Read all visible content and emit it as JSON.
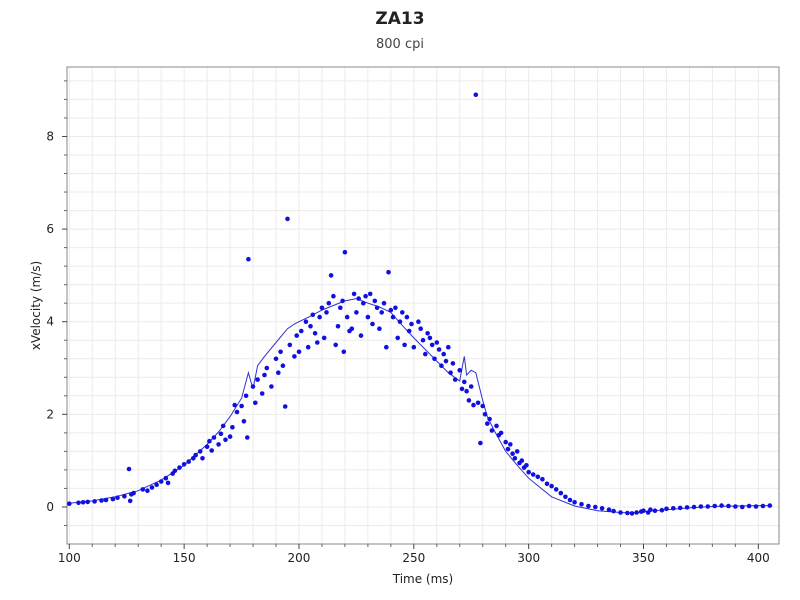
{
  "chart_data": {
    "type": "scatter",
    "title": "ZA13",
    "subtitle": "800 cpi",
    "xlabel": "Time (ms)",
    "ylabel": "xVelocity (m/s)",
    "xlim": [
      99,
      409
    ],
    "ylim": [
      -0.8,
      9.5
    ],
    "xticks": [
      100,
      150,
      200,
      250,
      300,
      350,
      400
    ],
    "yticks": [
      0,
      2,
      4,
      6,
      8
    ],
    "grid": true,
    "legend": "none",
    "colors": {
      "points": "#1010e0",
      "line": "#3030d0",
      "grid": "#ebebeb",
      "axis": "#222222"
    },
    "series": [
      {
        "kind": "points",
        "x": [
          100,
          104,
          106,
          108,
          111,
          114,
          116,
          119,
          121,
          124,
          126,
          126.5,
          127,
          128,
          132,
          134,
          136,
          138,
          140,
          142,
          143,
          145,
          146,
          148,
          150,
          152,
          154,
          155,
          157,
          158,
          160,
          161,
          162,
          163,
          165,
          166,
          167,
          168,
          170,
          171,
          172,
          173,
          175,
          176,
          177,
          177.5,
          178,
          180,
          181,
          182,
          184,
          185,
          186,
          188,
          190,
          191,
          192,
          193,
          194,
          195,
          196,
          198,
          199,
          200,
          201,
          203,
          204,
          205,
          206,
          207,
          208,
          209,
          210,
          211,
          212,
          213,
          214,
          215,
          216,
          217,
          218,
          219,
          219.5,
          220,
          221,
          222,
          223,
          224,
          225,
          226,
          227,
          228,
          229,
          230,
          231,
          232,
          233,
          234,
          235,
          236,
          237,
          238,
          239,
          240,
          241,
          242,
          243,
          244,
          245,
          246,
          247,
          248,
          249,
          250,
          252,
          253,
          254,
          255,
          256,
          257,
          258,
          259,
          260,
          261,
          262,
          263,
          264,
          265,
          266,
          267,
          268,
          270,
          271,
          272,
          273,
          274,
          275,
          276,
          277,
          278,
          279,
          280,
          281,
          282,
          283,
          284,
          286,
          287,
          288,
          290,
          291,
          292,
          293,
          294,
          295,
          296,
          297,
          298,
          299,
          300,
          302,
          304,
          306,
          308,
          310,
          312,
          314,
          316,
          318,
          320,
          323,
          326,
          329,
          332,
          335,
          337,
          340,
          343,
          345,
          347,
          349,
          350,
          352,
          353,
          355,
          358,
          360,
          363,
          366,
          369,
          372,
          375,
          378,
          381,
          384,
          387,
          390,
          393,
          396,
          399,
          402,
          405
        ],
        "y": [
          0.07,
          0.09,
          0.1,
          0.11,
          0.12,
          0.14,
          0.15,
          0.17,
          0.2,
          0.23,
          0.82,
          0.13,
          0.27,
          0.3,
          0.38,
          0.35,
          0.42,
          0.48,
          0.55,
          0.62,
          0.52,
          0.72,
          0.78,
          0.85,
          0.92,
          0.98,
          1.05,
          1.12,
          1.2,
          1.05,
          1.3,
          1.42,
          1.22,
          1.5,
          1.35,
          1.58,
          1.75,
          1.45,
          1.52,
          1.72,
          2.2,
          2.05,
          2.18,
          1.85,
          2.4,
          1.5,
          5.35,
          2.6,
          2.25,
          2.75,
          2.45,
          2.85,
          3.0,
          2.6,
          3.2,
          2.9,
          3.35,
          3.05,
          2.17,
          6.22,
          3.5,
          3.25,
          3.7,
          3.35,
          3.8,
          4.0,
          3.45,
          3.9,
          4.15,
          3.75,
          3.55,
          4.1,
          4.3,
          3.65,
          4.2,
          4.4,
          5.0,
          4.55,
          3.5,
          3.9,
          4.3,
          4.45,
          3.35,
          5.5,
          4.1,
          3.8,
          3.85,
          4.6,
          4.2,
          4.5,
          3.7,
          4.4,
          4.55,
          4.1,
          4.6,
          3.95,
          4.45,
          4.3,
          3.85,
          4.2,
          4.4,
          3.45,
          5.07,
          4.25,
          4.1,
          4.3,
          3.65,
          4.0,
          4.2,
          3.5,
          4.1,
          3.8,
          3.95,
          3.45,
          4.0,
          3.85,
          3.6,
          3.3,
          3.75,
          3.65,
          3.5,
          3.2,
          3.55,
          3.4,
          3.05,
          3.3,
          3.15,
          3.45,
          2.9,
          3.1,
          2.75,
          2.95,
          2.55,
          2.7,
          2.5,
          2.3,
          2.6,
          2.2,
          8.9,
          2.25,
          1.38,
          2.18,
          2.0,
          1.8,
          1.9,
          1.65,
          1.75,
          1.55,
          1.6,
          1.4,
          1.25,
          1.35,
          1.15,
          1.05,
          1.2,
          0.95,
          1.0,
          0.85,
          0.9,
          0.75,
          0.7,
          0.65,
          0.6,
          0.5,
          0.45,
          0.38,
          0.3,
          0.22,
          0.15,
          0.1,
          0.06,
          0.02,
          0.0,
          -0.03,
          -0.06,
          -0.09,
          -0.12,
          -0.13,
          -0.14,
          -0.12,
          -0.1,
          -0.08,
          -0.12,
          -0.06,
          -0.08,
          -0.07,
          -0.04,
          -0.03,
          -0.02,
          -0.01,
          0.0,
          0.01,
          0.01,
          0.02,
          0.03,
          0.02,
          0.01,
          0.0,
          0.02,
          0.01,
          0.02,
          0.03
        ]
      },
      {
        "kind": "line",
        "x": [
          100,
          110,
          120,
          130,
          140,
          150,
          160,
          165,
          170,
          175,
          178,
          180,
          182,
          185,
          190,
          195,
          198,
          200,
          205,
          210,
          215,
          220,
          225,
          230,
          235,
          240,
          245,
          250,
          255,
          260,
          265,
          270,
          272,
          273,
          275,
          277,
          280,
          282,
          285,
          290,
          295,
          300,
          305,
          310,
          320,
          330,
          340,
          345,
          350,
          360,
          370,
          380,
          390,
          400,
          406
        ],
        "y": [
          0.08,
          0.13,
          0.22,
          0.35,
          0.58,
          0.9,
          1.35,
          1.62,
          1.95,
          2.35,
          2.9,
          2.55,
          3.05,
          3.25,
          3.55,
          3.85,
          3.95,
          4.0,
          4.12,
          4.25,
          4.35,
          4.45,
          4.5,
          4.4,
          4.32,
          4.2,
          3.92,
          3.65,
          3.4,
          3.15,
          2.9,
          2.72,
          3.25,
          2.85,
          2.95,
          2.9,
          2.3,
          1.95,
          1.65,
          1.2,
          0.9,
          0.62,
          0.42,
          0.22,
          0.02,
          -0.08,
          -0.12,
          -0.13,
          -0.1,
          -0.06,
          -0.02,
          0.01,
          0.02,
          0.03,
          0.03
        ]
      }
    ]
  }
}
